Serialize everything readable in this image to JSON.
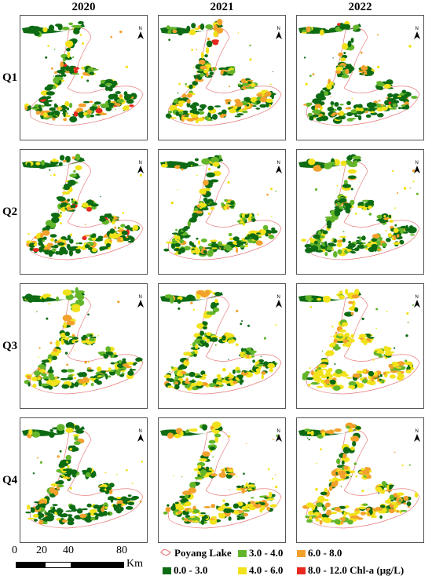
{
  "columns": [
    "2020",
    "2021",
    "2022"
  ],
  "rows": [
    "Q1",
    "Q2",
    "Q3",
    "Q4"
  ],
  "north_label": "N",
  "scale": {
    "ticks": [
      "0",
      "20",
      "40",
      "80"
    ],
    "unit": "Km"
  },
  "legend": {
    "boundary": "Poyang Lake",
    "c1": "0.0 - 3.0",
    "c2": "3.0 - 4.0",
    "c3": "4.0 - 6.0",
    "c4": "6.0 - 8.0",
    "c5": "8.0 - 12.0",
    "title": "Chl-a (μg/L)"
  },
  "colors": {
    "c1": "#0d6b14",
    "c2": "#63b52a",
    "c3": "#f2e21b",
    "c4": "#f2a12c",
    "c5": "#e8281e",
    "boundary": "#e87c7c"
  },
  "panel_mix": [
    [
      [
        0.55,
        0.15,
        0.15,
        0.12,
        0.03
      ],
      [
        0.45,
        0.15,
        0.18,
        0.2,
        0.02
      ],
      [
        0.6,
        0.12,
        0.12,
        0.14,
        0.02
      ]
    ],
    [
      [
        0.5,
        0.15,
        0.22,
        0.12,
        0.01
      ],
      [
        0.45,
        0.18,
        0.27,
        0.09,
        0.01
      ],
      [
        0.55,
        0.2,
        0.15,
        0.1,
        0.0
      ]
    ],
    [
      [
        0.35,
        0.25,
        0.32,
        0.08,
        0.0
      ],
      [
        0.35,
        0.22,
        0.36,
        0.07,
        0.0
      ],
      [
        0.12,
        0.15,
        0.55,
        0.18,
        0.0
      ]
    ],
    [
      [
        0.6,
        0.15,
        0.13,
        0.12,
        0.0
      ],
      [
        0.3,
        0.12,
        0.35,
        0.23,
        0.0
      ],
      [
        0.2,
        0.12,
        0.4,
        0.28,
        0.0
      ]
    ]
  ]
}
